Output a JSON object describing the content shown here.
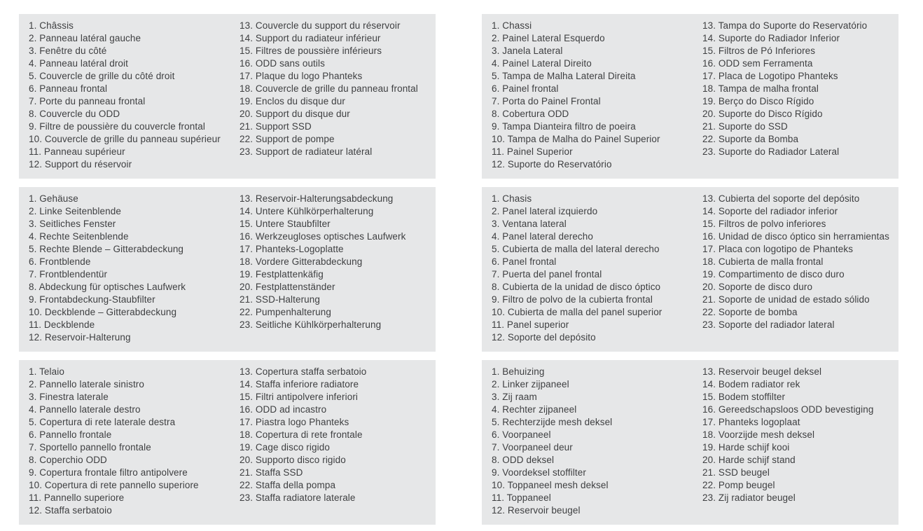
{
  "page": {
    "background_color": "#ffffff",
    "panel_background_color": "#e6e7e8",
    "text_color": "#3e3f41"
  },
  "panels": [
    {
      "language": "french",
      "columns": [
        [
          "1. Châssis",
          "2. Panneau latéral gauche",
          "3. Fenêtre du côté",
          "4. Panneau latéral droit",
          "5. Couvercle de grille du côté droit",
          "6. Panneau frontal",
          "7. Porte du panneau frontal",
          "8. Couvercle du ODD",
          "9. Filtre de poussière du couvercle frontal",
          "10. Couvercle de grille du panneau supérieur",
          "11. Panneau supérieur",
          "12. Support du réservoir"
        ],
        [
          "13. Couvercle du support du réservoir",
          "14. Support du radiateur inférieur",
          "15. Filtres de poussière inférieurs",
          "16. ODD sans outils",
          "17. Plaque du logo Phanteks",
          "18. Couvercle de grille du panneau frontal",
          "19. Enclos du disque dur",
          "20. Support du disque dur",
          "21. Support SSD",
          "22. Support de pompe",
          "23. Support de radiateur latéral"
        ]
      ]
    },
    {
      "language": "portuguese",
      "columns": [
        [
          "1. Chassi",
          "2. Painel Lateral Esquerdo",
          "3. Janela Lateral",
          "4. Painel Lateral Direito",
          "5. Tampa de Malha Lateral Direita",
          "6. Painel frontal",
          "7. Porta do Painel Frontal",
          "8. Cobertura ODD",
          "9. Tampa Dianteira filtro de poeira",
          "10. Tampa de Malha do Painel Superior",
          "11. Painel Superior",
          "12. Suporte do Reservatório"
        ],
        [
          "13. Tampa do Suporte do Reservatório",
          "14. Suporte do Radiador Inferior",
          "15. Filtros de Pó Inferiores",
          "16. ODD sem Ferramenta",
          "17. Placa de Logotipo Phanteks",
          "18. Tampa de malha frontal",
          "19. Berço do Disco Rígido",
          "20. Suporte do Disco Rígido",
          "21. Suporte do SSD",
          "22. Suporte da Bomba",
          "23. Suporte do Radiador Lateral"
        ]
      ]
    },
    {
      "language": "german",
      "columns": [
        [
          "1. Gehäuse",
          "2. Linke Seitenblende",
          "3. Seitliches Fenster",
          "4. Rechte Seitenblende",
          "5. Rechte Blende – Gitterabdeckung",
          "6. Frontblende",
          "7. Frontblendentür",
          "8. Abdeckung für optisches Laufwerk",
          "9. Frontabdeckung-Staubfilter",
          "10. Deckblende – Gitterabdeckung",
          "11. Deckblende",
          "12. Reservoir-Halterung"
        ],
        [
          "13. Reservoir-Halterungsabdeckung",
          "14. Untere Kühlkörperhalterung",
          "15. Untere Staubfilter",
          "16. Werkzeugloses optisches Laufwerk",
          "17. Phanteks-Logoplatte",
          "18. Vordere Gitterabdeckung",
          "19. Festplattenkäfig",
          "20. Festplattenständer",
          "21. SSD-Halterung",
          "22. Pumpenhalterung",
          "23. Seitliche Kühlkörperhalterung"
        ]
      ]
    },
    {
      "language": "spanish",
      "columns": [
        [
          "1. Chasis",
          "2. Panel lateral izquierdo",
          "3. Ventana lateral",
          "4. Panel lateral derecho",
          "5. Cubierta de malla del lateral derecho",
          "6. Panel frontal",
          "7. Puerta del panel frontal",
          "8. Cubierta de la unidad de disco óptico",
          "9. Filtro de polvo de la cubierta frontal",
          "10. Cubierta de malla del panel superior",
          "11. Panel superior",
          "12. Soporte del depósito"
        ],
        [
          "13. Cubierta del soporte del depósito",
          "14. Soporte del radiador inferior",
          "15. Filtros de polvo inferiores",
          "16. Unidad de disco óptico sin herramientas",
          "17. Placa con logotipo de Phanteks",
          "18. Cubierta de malla frontal",
          "19. Compartimento de disco duro",
          "20. Soporte de disco duro",
          "21. Soporte de unidad de estado sólido",
          "22. Soporte de bomba",
          "23. Soporte del radiador lateral"
        ]
      ]
    },
    {
      "language": "italian",
      "columns": [
        [
          "1. Telaio",
          "2. Pannello laterale sinistro",
          "3. Finestra laterale",
          "4. Pannello laterale destro",
          "5. Copertura di rete laterale destra",
          "6. Pannello frontale",
          "7. Sportello pannello frontale",
          "8. Coperchio ODD",
          "9. Copertura frontale filtro antipolvere",
          "10. Copertura di rete pannello superiore",
          "11. Pannello superiore",
          "12. Staffa serbatoio"
        ],
        [
          "13. Copertura staffa serbatoio",
          "14. Staffa inferiore radiatore",
          "15. Filtri antipolvere inferiori",
          "16. ODD ad incastro",
          "17. Piastra logo Phanteks",
          "18. Copertura di rete frontale",
          "19. Cage disco rigido",
          "20. Supporto disco rigido",
          "21. Staffa SSD",
          "22. Staffa della pompa",
          "23. Staffa radiatore laterale"
        ]
      ]
    },
    {
      "language": "dutch",
      "columns": [
        [
          "1. Behuizing",
          "2. Linker zijpaneel",
          "3. Zij raam",
          "4. Rechter zijpaneel",
          "5. Rechterzijde mesh deksel",
          "6. Voorpaneel",
          "7. Voorpaneel deur",
          "8. ODD deksel",
          "9. Voordeksel stoffilter",
          "10. Toppaneel mesh deksel",
          "11. Toppaneel",
          "12. Reservoir beugel"
        ],
        [
          "13. Reservoir beugel deksel",
          "14. Bodem radiator rek",
          "15. Bodem stoffilter",
          "16. Gereedschapsloos ODD bevestiging",
          "17. Phanteks logoplaat",
          "18. Voorzijde mesh deksel",
          "19. Harde schijf kooi",
          "20. Harde schijf stand",
          "21. SSD beugel",
          "22. Pomp beugel",
          "23. Zij radiator beugel"
        ]
      ]
    }
  ]
}
